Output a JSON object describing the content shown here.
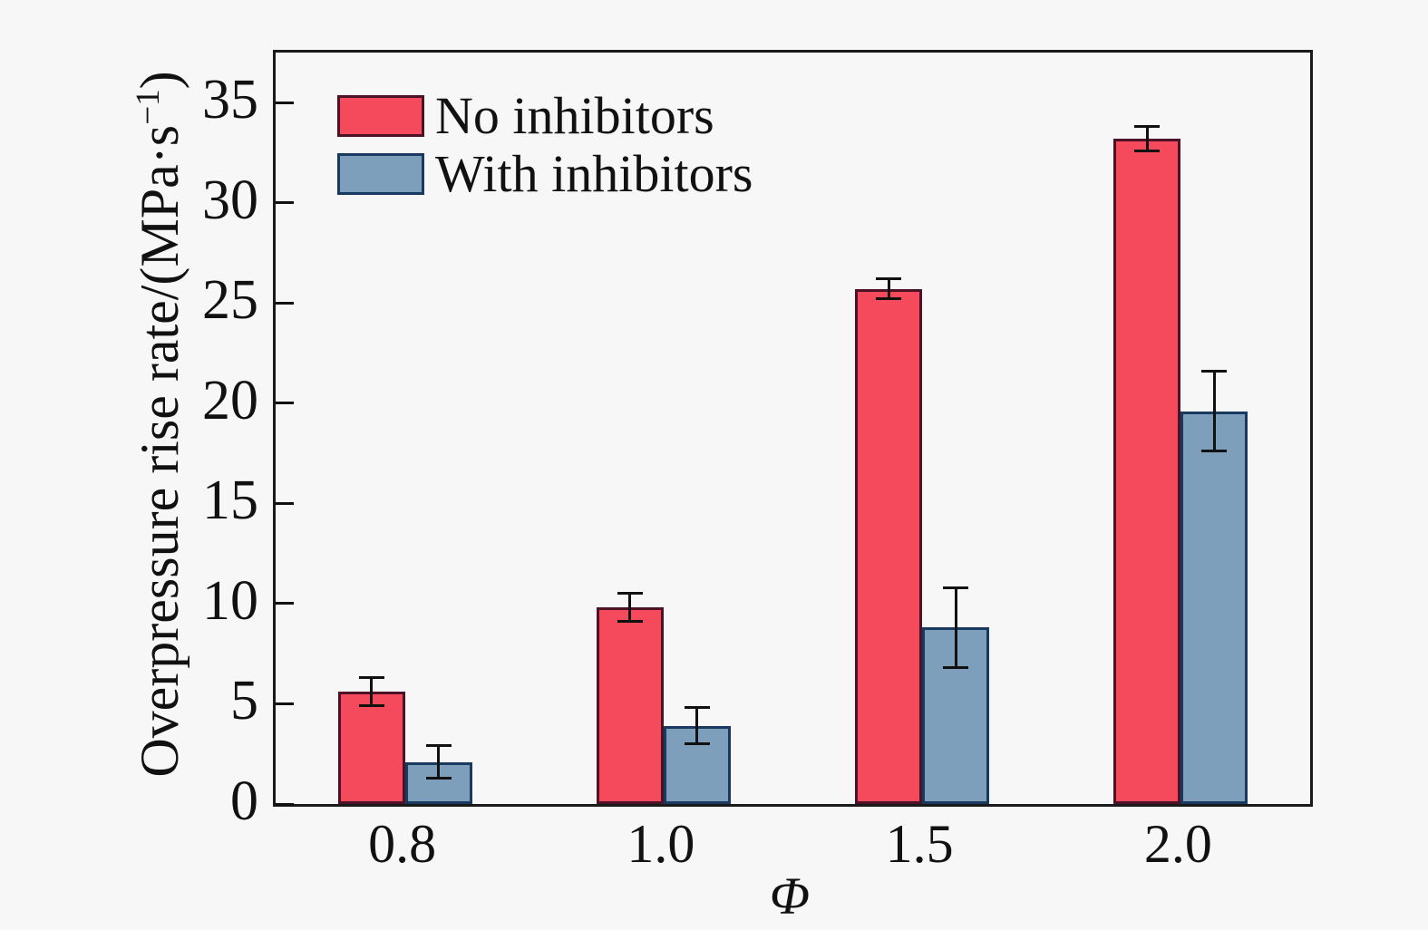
{
  "figure": {
    "background": "#f6f7f6",
    "axis_color": "#1a1a1a",
    "text_color": "#111111"
  },
  "chart_data": {
    "type": "bar",
    "title": "",
    "xlabel": "Φ",
    "ylabel": "Overpressure rise rate/(MPa·s⁻¹)",
    "ylabel_parts": {
      "pre": "Overpressure rise rate/(MPa·s",
      "sup": "−1",
      "post": ")"
    },
    "categories": [
      "0.8",
      "1.0",
      "1.5",
      "2.0"
    ],
    "series": [
      {
        "name": "No inhibitors",
        "values": [
          5.6,
          9.8,
          25.7,
          33.2
        ],
        "errors": [
          0.7,
          0.7,
          0.5,
          0.6
        ],
        "fill": "#f54a5c",
        "edge": "#4d1226"
      },
      {
        "name": "With inhibitors",
        "values": [
          2.1,
          3.9,
          8.8,
          19.6
        ],
        "errors": [
          0.8,
          0.9,
          2.0,
          2.0
        ],
        "fill": "#7e9fbc",
        "edge": "#173a5e"
      }
    ],
    "ylim": [
      0,
      37.5
    ],
    "yticks": [
      0,
      5,
      10,
      15,
      20,
      25,
      30,
      35
    ],
    "error_bar_color": "#111111",
    "legend_position": "top-left-inside",
    "grid": false
  }
}
